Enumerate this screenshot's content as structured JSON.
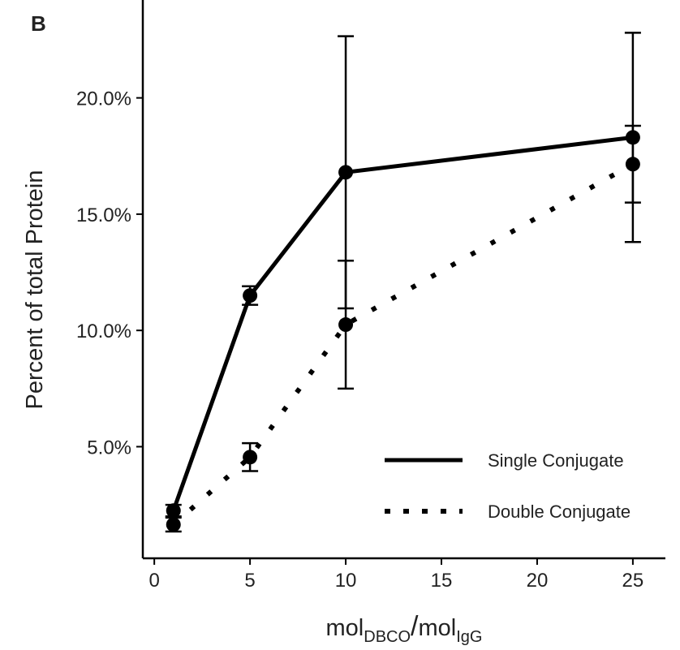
{
  "panel_label": "B",
  "chart_data": {
    "type": "line",
    "title": "",
    "ylabel": "Percent of total Protein",
    "xlabel": {
      "base1": "mol",
      "sub1": "DBCO",
      "sep": "/",
      "base2": "mol",
      "sub2": "IgG"
    },
    "xlim": [
      -0.6,
      26.7
    ],
    "ylim": [
      0.2,
      24.0
    ],
    "x_ticks": [
      0,
      5,
      10,
      15,
      20,
      25
    ],
    "x_tick_labels": [
      "0",
      "5",
      "10",
      "15",
      "20",
      "25"
    ],
    "y_ticks": [
      5,
      10,
      15,
      20
    ],
    "y_tick_labels": [
      "5.0%",
      "10.0%",
      "15.0%",
      "20.0%"
    ],
    "grid": false,
    "legend_position": "bottom-right",
    "x": [
      1,
      5,
      10,
      25
    ],
    "series": [
      {
        "name": "Single Conjugate",
        "line_style": "solid",
        "values": [
          2.25,
          11.5,
          16.8,
          18.3
        ],
        "error": [
          0.25,
          0.4,
          5.85,
          4.5
        ]
      },
      {
        "name": "Double Conjugate",
        "line_style": "dotted",
        "values": [
          1.65,
          4.55,
          10.25,
          17.15
        ],
        "error": [
          0.3,
          0.6,
          2.75,
          1.65
        ]
      }
    ],
    "colors": {
      "line": "#000000",
      "text": "#222222"
    }
  }
}
